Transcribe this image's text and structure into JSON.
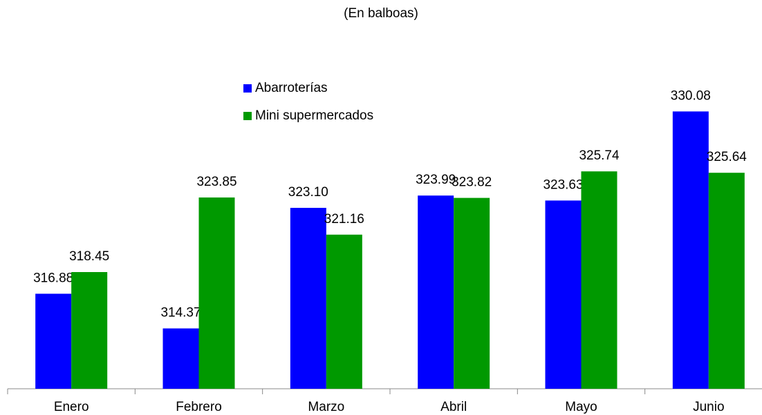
{
  "chart_data": {
    "type": "bar",
    "subtitle": "(En balboas)",
    "categories": [
      "Enero",
      "Febrero",
      "Marzo",
      "Abril",
      "Mayo",
      "Junio"
    ],
    "series": [
      {
        "name": "Abarroterías",
        "color": "#0000ff",
        "values": [
          316.88,
          314.37,
          323.1,
          323.99,
          323.63,
          330.08
        ],
        "value_labels": [
          "316.88",
          "314.37",
          "323.10",
          "323.99",
          "323.63",
          "330.08"
        ]
      },
      {
        "name": "Mini supermercados",
        "color": "#009900",
        "values": [
          318.45,
          323.85,
          321.16,
          323.82,
          325.74,
          325.64
        ],
        "value_labels": [
          "318.45",
          "323.85",
          "321.16",
          "323.82",
          "325.74",
          "325.64"
        ]
      }
    ],
    "ylim": [
      310,
      335
    ]
  }
}
